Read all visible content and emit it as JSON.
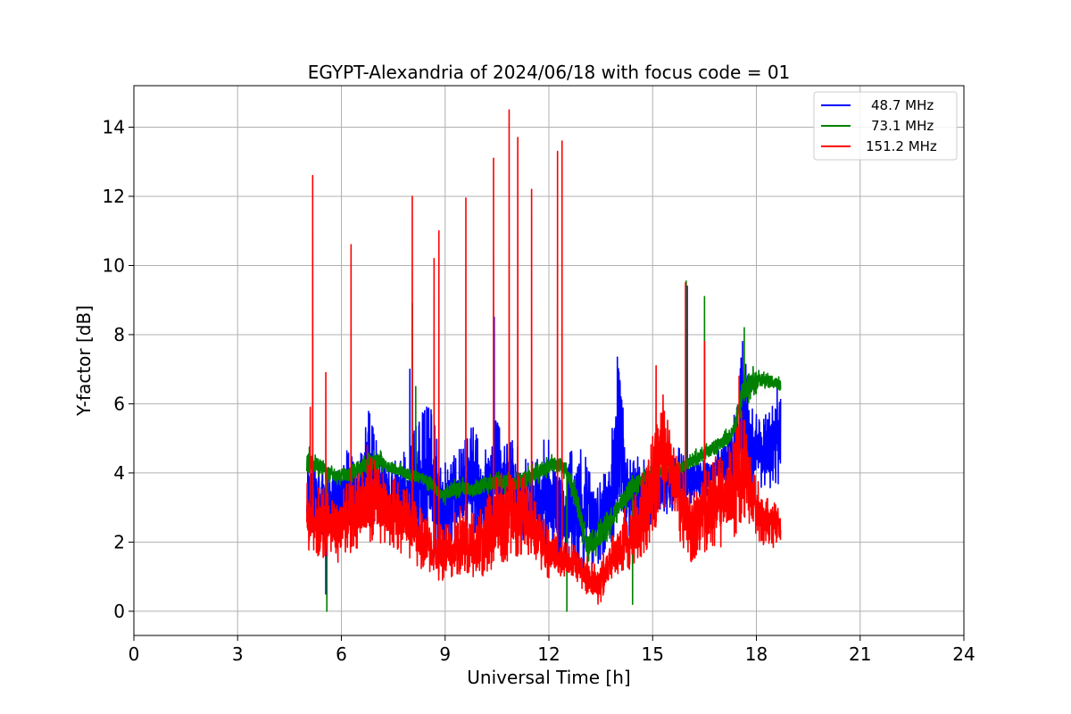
{
  "chart_data": {
    "type": "line",
    "title": "EGYPT-Alexandria of 2024/06/18 with focus code = 01",
    "xlabel": "Universal Time [h]",
    "ylabel": "Y-factor [dB]",
    "xlim": [
      0,
      24
    ],
    "ylim": [
      -0.7,
      15.2
    ],
    "xticks": [
      0,
      3,
      6,
      9,
      12,
      15,
      18,
      21,
      24
    ],
    "xtick_labels": [
      "0",
      "3",
      "6",
      "9",
      "12",
      "15",
      "18",
      "21",
      "24"
    ],
    "yticks": [
      0,
      2,
      4,
      6,
      8,
      10,
      12,
      14
    ],
    "ytick_labels": [
      "0",
      "2",
      "4",
      "6",
      "8",
      "10",
      "12",
      "14"
    ],
    "grid": true,
    "legend_position": "top-right",
    "series": [
      {
        "name": "48.7 MHz",
        "color": "#0000ff",
        "x": [
          5.0,
          5.3,
          5.6,
          5.9,
          6.2,
          6.5,
          6.8,
          7.1,
          7.4,
          7.7,
          8.0,
          8.3,
          8.6,
          8.9,
          9.2,
          9.5,
          9.8,
          10.1,
          10.4,
          10.7,
          11.0,
          11.3,
          11.6,
          11.9,
          12.2,
          12.5,
          12.8,
          13.1,
          13.4,
          13.7,
          14.0,
          14.3,
          14.6,
          14.9,
          15.2,
          15.5,
          15.8,
          16.1,
          16.4,
          16.7,
          17.0,
          17.3,
          17.6,
          17.9,
          18.2,
          18.5,
          18.7
        ],
        "y_low": [
          2.0,
          2.3,
          2.1,
          2.2,
          2.4,
          2.6,
          2.5,
          2.6,
          2.4,
          2.3,
          2.0,
          1.8,
          1.5,
          1.7,
          2.0,
          2.1,
          2.0,
          2.2,
          2.3,
          2.5,
          2.3,
          2.0,
          1.9,
          1.8,
          1.6,
          1.5,
          1.3,
          1.1,
          1.3,
          1.8,
          2.0,
          2.1,
          2.2,
          2.4,
          2.6,
          2.8,
          3.0,
          3.1,
          3.2,
          3.4,
          3.5,
          3.6,
          3.7,
          3.6,
          3.5,
          3.6,
          3.7
        ],
        "y_high": [
          4.6,
          4.2,
          4.3,
          4.0,
          4.8,
          4.2,
          6.0,
          4.5,
          4.3,
          4.4,
          5.0,
          5.8,
          6.0,
          4.2,
          4.5,
          4.8,
          5.4,
          4.6,
          5.8,
          5.0,
          5.0,
          4.4,
          4.3,
          5.2,
          4.6,
          4.2,
          5.2,
          4.4,
          3.8,
          4.2,
          7.3,
          4.3,
          4.8,
          4.4,
          4.2,
          4.3,
          4.8,
          4.5,
          4.6,
          4.5,
          5.0,
          5.4,
          7.8,
          5.8,
          5.6,
          6.0,
          6.2
        ],
        "spikes": [
          [
            5.55,
            0.5
          ],
          [
            7.98,
            7.0
          ],
          [
            8.75,
            4.2
          ],
          [
            10.42,
            8.5
          ],
          [
            13.98,
            7.35
          ],
          [
            16.0,
            9.4
          ],
          [
            17.6,
            7.8
          ],
          [
            18.6,
            6.5
          ]
        ]
      },
      {
        "name": "73.1 MHz",
        "color": "#008000",
        "x": [
          5.0,
          5.3,
          5.6,
          5.9,
          6.2,
          6.5,
          6.8,
          7.1,
          7.4,
          7.7,
          8.0,
          8.3,
          8.6,
          8.9,
          9.2,
          9.5,
          9.8,
          10.1,
          10.4,
          10.7,
          11.0,
          11.3,
          11.6,
          11.9,
          12.2,
          12.5,
          12.8,
          13.1,
          13.4,
          13.7,
          14.0,
          14.3,
          14.6,
          14.9,
          15.2,
          15.5,
          15.8,
          16.1,
          16.4,
          16.7,
          17.0,
          17.3,
          17.6,
          17.9,
          18.2,
          18.5,
          18.7
        ],
        "y_low": [
          3.8,
          3.9,
          3.7,
          3.6,
          3.6,
          3.8,
          3.9,
          4.0,
          3.9,
          3.8,
          3.7,
          3.6,
          3.4,
          3.0,
          3.2,
          3.3,
          3.2,
          3.3,
          3.4,
          3.4,
          3.3,
          3.5,
          3.6,
          3.8,
          3.9,
          3.8,
          2.8,
          1.4,
          1.6,
          2.0,
          2.6,
          3.0,
          3.4,
          3.6,
          3.8,
          3.8,
          3.9,
          4.0,
          4.2,
          4.4,
          4.6,
          4.8,
          5.8,
          6.2,
          6.4,
          6.3,
          6.2
        ],
        "y_high": [
          4.8,
          4.6,
          4.3,
          4.2,
          4.3,
          4.5,
          4.6,
          4.7,
          4.4,
          4.3,
          4.2,
          4.1,
          4.0,
          3.6,
          3.8,
          3.9,
          3.8,
          4.0,
          4.0,
          4.1,
          4.0,
          4.2,
          4.3,
          4.5,
          4.6,
          4.4,
          3.6,
          2.4,
          2.6,
          2.9,
          3.4,
          3.9,
          4.1,
          4.2,
          4.3,
          4.3,
          4.4,
          4.6,
          4.8,
          5.0,
          5.2,
          5.4,
          6.8,
          7.1,
          7.0,
          6.9,
          6.8
        ],
        "spikes": [
          [
            5.58,
            0.0
          ],
          [
            8.05,
            8.9
          ],
          [
            8.15,
            6.5
          ],
          [
            12.52,
            0.0
          ],
          [
            14.42,
            0.2
          ],
          [
            15.97,
            9.55
          ],
          [
            16.5,
            9.1
          ],
          [
            17.65,
            8.2
          ]
        ]
      },
      {
        "name": "151.2 MHz",
        "color": "#ff0000",
        "x": [
          5.0,
          5.3,
          5.6,
          5.9,
          6.2,
          6.5,
          6.8,
          7.1,
          7.4,
          7.7,
          8.0,
          8.3,
          8.6,
          8.9,
          9.2,
          9.5,
          9.8,
          10.1,
          10.4,
          10.7,
          11.0,
          11.3,
          11.6,
          11.9,
          12.2,
          12.5,
          12.8,
          13.1,
          13.4,
          13.7,
          14.0,
          14.3,
          14.6,
          14.9,
          15.2,
          15.5,
          15.8,
          16.1,
          16.4,
          16.7,
          17.0,
          17.3,
          17.6,
          17.9,
          18.2,
          18.5,
          18.7
        ],
        "y_low": [
          1.5,
          1.6,
          1.5,
          1.4,
          1.6,
          1.7,
          1.9,
          2.0,
          1.8,
          1.7,
          1.5,
          1.2,
          1.0,
          0.8,
          1.0,
          1.1,
          1.0,
          1.0,
          1.2,
          1.4,
          1.5,
          1.7,
          1.4,
          1.0,
          0.9,
          0.9,
          0.8,
          0.4,
          0.1,
          0.6,
          1.0,
          1.1,
          1.3,
          1.8,
          2.8,
          3.2,
          2.0,
          1.4,
          1.6,
          1.8,
          1.8,
          2.0,
          2.6,
          2.2,
          1.9,
          1.8,
          1.9
        ],
        "y_high": [
          3.8,
          3.7,
          3.5,
          3.3,
          3.8,
          4.0,
          4.5,
          4.3,
          4.0,
          3.8,
          3.5,
          3.0,
          2.6,
          2.5,
          2.8,
          3.2,
          2.9,
          3.0,
          3.8,
          4.2,
          4.0,
          4.0,
          3.2,
          2.6,
          2.2,
          2.0,
          1.9,
          1.6,
          1.4,
          2.0,
          2.6,
          3.2,
          3.6,
          4.6,
          6.8,
          5.2,
          4.2,
          3.6,
          3.8,
          4.4,
          4.6,
          4.8,
          6.0,
          4.2,
          3.4,
          3.2,
          3.0
        ],
        "spikes": [
          [
            5.1,
            5.9
          ],
          [
            5.17,
            12.6
          ],
          [
            5.55,
            6.9
          ],
          [
            6.28,
            10.6
          ],
          [
            6.75,
            4.8
          ],
          [
            8.05,
            12.0
          ],
          [
            8.68,
            10.2
          ],
          [
            8.82,
            11.0
          ],
          [
            9.6,
            11.95
          ],
          [
            10.4,
            13.1
          ],
          [
            10.85,
            14.5
          ],
          [
            11.1,
            13.7
          ],
          [
            11.5,
            12.2
          ],
          [
            12.25,
            13.3
          ],
          [
            12.38,
            13.6
          ],
          [
            15.1,
            7.1
          ],
          [
            15.95,
            9.5
          ],
          [
            16.5,
            7.8
          ],
          [
            17.5,
            6.8
          ]
        ]
      }
    ]
  }
}
